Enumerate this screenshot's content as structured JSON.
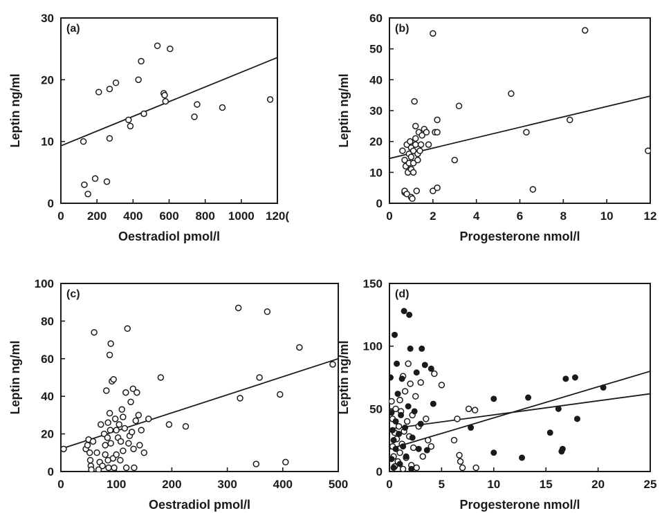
{
  "chart_data": [
    {
      "type": "scatter",
      "panel_label": "(a)",
      "xlabel": "Oestradiol pmol/l",
      "ylabel": "Leptin ng/ml",
      "xlim": [
        0,
        1200
      ],
      "ylim": [
        0,
        30
      ],
      "x_ticks": [
        "0",
        "200",
        "400",
        "600",
        "800",
        "1000",
        "120("
      ],
      "y_ticks": [
        "0",
        "10",
        "20",
        "30"
      ],
      "grid": false,
      "series": [
        {
          "marker": "open",
          "points": [
            [
              125,
              10
            ],
            [
              130,
              3
            ],
            [
              150,
              1.5
            ],
            [
              190,
              4
            ],
            [
              210,
              18
            ],
            [
              255,
              3.5
            ],
            [
              270,
              10.5
            ],
            [
              270,
              18.5
            ],
            [
              305,
              19.5
            ],
            [
              375,
              13.5
            ],
            [
              385,
              12.5
            ],
            [
              430,
              20
            ],
            [
              445,
              23
            ],
            [
              460,
              14.5
            ],
            [
              535,
              25.5
            ],
            [
              570,
              17.8
            ],
            [
              575,
              17.5
            ],
            [
              580,
              16.5
            ],
            [
              605,
              25
            ],
            [
              740,
              14
            ],
            [
              755,
              16
            ],
            [
              895,
              15.5
            ],
            [
              1160,
              16.8
            ]
          ]
        }
      ],
      "fit_lines": [
        {
          "x": [
            0,
            1200
          ],
          "y": [
            9.3,
            23.6
          ]
        }
      ]
    },
    {
      "type": "scatter",
      "panel_label": "(b)",
      "xlabel": "Progesterone nmol/l",
      "ylabel": "Leptin ng/ml",
      "xlim": [
        0,
        12
      ],
      "ylim": [
        0,
        60
      ],
      "x_ticks": [
        "0",
        "2",
        "4",
        "6",
        "8",
        "10",
        "12"
      ],
      "y_ticks": [
        "0",
        "10",
        "20",
        "30",
        "40",
        "50",
        "60"
      ],
      "grid": false,
      "series": [
        {
          "marker": "open",
          "points": [
            [
              0.6,
              17
            ],
            [
              0.7,
              14
            ],
            [
              0.7,
              3.5
            ],
            [
              0.7,
              4
            ],
            [
              0.75,
              12
            ],
            [
              0.8,
              19
            ],
            [
              0.8,
              3
            ],
            [
              0.85,
              10
            ],
            [
              0.9,
              16
            ],
            [
              0.9,
              13
            ],
            [
              0.95,
              20
            ],
            [
              1.0,
              18
            ],
            [
              1.0,
              15
            ],
            [
              1.0,
              11
            ],
            [
              1.0,
              2
            ],
            [
              1.05,
              1.5
            ],
            [
              1.1,
              17
            ],
            [
              1.1,
              13
            ],
            [
              1.1,
              10
            ],
            [
              1.15,
              33
            ],
            [
              1.2,
              25
            ],
            [
              1.2,
              21
            ],
            [
              1.2,
              19
            ],
            [
              1.25,
              4
            ],
            [
              1.3,
              16
            ],
            [
              1.3,
              14
            ],
            [
              1.35,
              23
            ],
            [
              1.4,
              17
            ],
            [
              1.45,
              19
            ],
            [
              1.5,
              22
            ],
            [
              1.6,
              24
            ],
            [
              1.7,
              23
            ],
            [
              1.8,
              19
            ],
            [
              2.0,
              55
            ],
            [
              2.0,
              4
            ],
            [
              2.1,
              23
            ],
            [
              2.2,
              27
            ],
            [
              2.2,
              23
            ],
            [
              2.2,
              5
            ],
            [
              3.0,
              14
            ],
            [
              3.2,
              31.5
            ],
            [
              5.6,
              35.5
            ],
            [
              6.3,
              23
            ],
            [
              6.6,
              4.5
            ],
            [
              8.3,
              27
            ],
            [
              9.0,
              56
            ],
            [
              11.9,
              17
            ]
          ]
        }
      ],
      "fit_lines": [
        {
          "x": [
            0,
            12
          ],
          "y": [
            14.5,
            34.7
          ]
        }
      ]
    },
    {
      "type": "scatter",
      "panel_label": "(c)",
      "xlabel": "Oestradiol pmol/l",
      "ylabel": "Leptin ng/ml",
      "xlim": [
        0,
        500
      ],
      "ylim": [
        0,
        100
      ],
      "x_ticks": [
        "0",
        "100",
        "200",
        "300",
        "400",
        "500"
      ],
      "y_ticks": [
        "0",
        "20",
        "40",
        "60",
        "80",
        "100"
      ],
      "grid": false,
      "series": [
        {
          "marker": "open",
          "points": [
            [
              5,
              12
            ],
            [
              45,
              12
            ],
            [
              48,
              14
            ],
            [
              50,
              17
            ],
            [
              52,
              10
            ],
            [
              53,
              6
            ],
            [
              54,
              3
            ],
            [
              55,
              1
            ],
            [
              58,
              16
            ],
            [
              60,
              74
            ],
            [
              65,
              10
            ],
            [
              68,
              1
            ],
            [
              70,
              5
            ],
            [
              72,
              25
            ],
            [
              75,
              3
            ],
            [
              78,
              20
            ],
            [
              80,
              14
            ],
            [
              80,
              9
            ],
            [
              82,
              43
            ],
            [
              84,
              18
            ],
            [
              85,
              26
            ],
            [
              85,
              6
            ],
            [
              86,
              2
            ],
            [
              88,
              62
            ],
            [
              88,
              31
            ],
            [
              89,
              22
            ],
            [
              90,
              68
            ],
            [
              90,
              15
            ],
            [
              92,
              48
            ],
            [
              94,
              7
            ],
            [
              95,
              49
            ],
            [
              96,
              2
            ],
            [
              98,
              28
            ],
            [
              100,
              9
            ],
            [
              100,
              22
            ],
            [
              103,
              18
            ],
            [
              105,
              25
            ],
            [
              107,
              6
            ],
            [
              108,
              16
            ],
            [
              110,
              33
            ],
            [
              112,
              29
            ],
            [
              112,
              11
            ],
            [
              115,
              23
            ],
            [
              117,
              42
            ],
            [
              118,
              2
            ],
            [
              120,
              76
            ],
            [
              122,
              15
            ],
            [
              124,
              19
            ],
            [
              126,
              37
            ],
            [
              128,
              21
            ],
            [
              130,
              44
            ],
            [
              131,
              12
            ],
            [
              132,
              2
            ],
            [
              135,
              27
            ],
            [
              137,
              42
            ],
            [
              140,
              30
            ],
            [
              142,
              14
            ],
            [
              145,
              22
            ],
            [
              150,
              10
            ],
            [
              158,
              28
            ],
            [
              180,
              50
            ],
            [
              195,
              25
            ],
            [
              225,
              24
            ],
            [
              320,
              87
            ],
            [
              323,
              39
            ],
            [
              352,
              4
            ],
            [
              358,
              50
            ],
            [
              372,
              85
            ],
            [
              395,
              41
            ],
            [
              405,
              5
            ],
            [
              430,
              66
            ],
            [
              490,
              57
            ]
          ]
        }
      ],
      "fit_lines": [
        {
          "x": [
            0,
            500
          ],
          "y": [
            12,
            60
          ]
        }
      ]
    },
    {
      "type": "scatter",
      "panel_label": "(d)",
      "xlabel": "Progesterone nmol/l",
      "ylabel": "Leptin ng/ml",
      "xlim": [
        0,
        25
      ],
      "ylim": [
        0,
        150
      ],
      "x_ticks": [
        "0",
        "5",
        "10",
        "15",
        "20",
        "25"
      ],
      "y_ticks": [
        "0",
        "50",
        "100",
        "150"
      ],
      "grid": false,
      "series": [
        {
          "marker": "open",
          "points": [
            [
              0.2,
              56
            ],
            [
              0.3,
              42
            ],
            [
              0.3,
              20
            ],
            [
              0.4,
              12
            ],
            [
              0.5,
              31
            ],
            [
              0.5,
              4
            ],
            [
              0.6,
              50
            ],
            [
              0.7,
              26
            ],
            [
              0.8,
              8
            ],
            [
              0.9,
              36
            ],
            [
              1.0,
              57
            ],
            [
              1.0,
              15
            ],
            [
              1.1,
              48
            ],
            [
              1.2,
              22
            ],
            [
              1.3,
              76
            ],
            [
              1.3,
              2
            ],
            [
              1.4,
              32
            ],
            [
              1.5,
              64
            ],
            [
              1.6,
              11
            ],
            [
              1.7,
              40
            ],
            [
              1.8,
              86
            ],
            [
              1.9,
              28
            ],
            [
              2.0,
              70
            ],
            [
              2.1,
              5
            ],
            [
              2.2,
              45
            ],
            [
              2.3,
              19
            ],
            [
              2.5,
              60
            ],
            [
              2.6,
              3
            ],
            [
              2.8,
              36
            ],
            [
              3.0,
              71
            ],
            [
              3.2,
              12
            ],
            [
              3.5,
              42
            ],
            [
              3.7,
              25
            ],
            [
              4.0,
              20
            ],
            [
              4.3,
              78
            ],
            [
              5.0,
              69
            ],
            [
              6.2,
              25
            ],
            [
              6.5,
              42
            ],
            [
              6.7,
              13
            ],
            [
              6.8,
              8
            ],
            [
              7.0,
              3
            ],
            [
              7.6,
              50
            ],
            [
              8.2,
              49
            ],
            [
              8.3,
              3
            ]
          ]
        },
        {
          "marker": "filled",
          "points": [
            [
              0.1,
              75
            ],
            [
              0.2,
              47
            ],
            [
              0.2,
              10
            ],
            [
              0.3,
              33
            ],
            [
              0.4,
              25
            ],
            [
              0.4,
              3
            ],
            [
              0.5,
              109
            ],
            [
              0.6,
              40
            ],
            [
              0.6,
              18
            ],
            [
              0.7,
              86
            ],
            [
              0.8,
              62
            ],
            [
              0.9,
              30
            ],
            [
              1.0,
              6
            ],
            [
              1.1,
              45
            ],
            [
              1.2,
              74
            ],
            [
              1.3,
              20
            ],
            [
              1.4,
              128
            ],
            [
              1.5,
              35
            ],
            [
              1.6,
              12
            ],
            [
              1.8,
              52
            ],
            [
              1.9,
              125
            ],
            [
              2.0,
              98
            ],
            [
              2.1,
              2
            ],
            [
              2.2,
              27
            ],
            [
              2.4,
              48
            ],
            [
              2.6,
              79
            ],
            [
              2.8,
              18
            ],
            [
              3.0,
              38
            ],
            [
              3.1,
              98
            ],
            [
              3.4,
              85
            ],
            [
              3.6,
              17
            ],
            [
              4.0,
              82
            ],
            [
              4.2,
              54
            ],
            [
              7.8,
              35
            ],
            [
              10.0,
              58
            ],
            [
              10.0,
              15
            ],
            [
              12.7,
              11
            ],
            [
              13.3,
              59
            ],
            [
              15.4,
              31
            ],
            [
              16.2,
              50
            ],
            [
              16.5,
              16
            ],
            [
              16.6,
              18
            ],
            [
              16.9,
              74
            ],
            [
              17.8,
              75
            ],
            [
              18.0,
              42
            ],
            [
              20.5,
              67
            ]
          ]
        }
      ],
      "fit_lines": [
        {
          "x": [
            0,
            25
          ],
          "y": [
            34,
            62
          ]
        },
        {
          "x": [
            0,
            25
          ],
          "y": [
            18,
            80
          ]
        }
      ]
    }
  ]
}
